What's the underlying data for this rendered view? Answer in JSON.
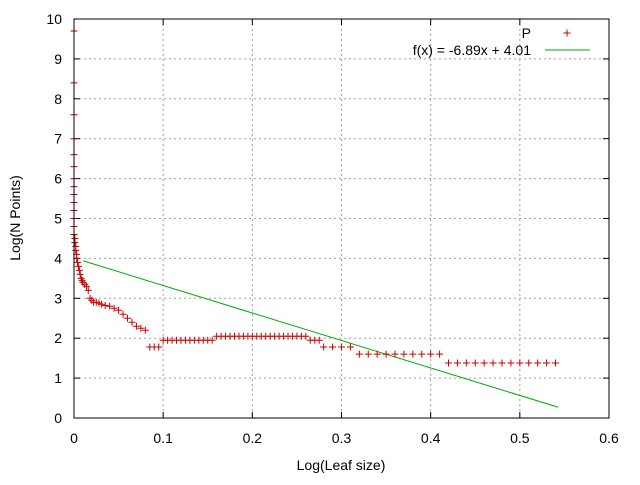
{
  "chart_data": {
    "type": "scatter",
    "xlabel": "Log(Leaf size)",
    "ylabel": "Log(N Points)",
    "xlim": [
      0,
      0.6
    ],
    "ylim": [
      0,
      10
    ],
    "x_ticks": [
      "0",
      "0.1",
      "0.2",
      "0.3",
      "0.4",
      "0.5",
      "0.6"
    ],
    "y_ticks": [
      "0",
      "1",
      "2",
      "3",
      "4",
      "5",
      "6",
      "7",
      "8",
      "9",
      "10"
    ],
    "grid": true,
    "legend_position": "top-right",
    "series": [
      {
        "name": "P",
        "kind": "points",
        "marker": "+",
        "color": "#cc0000",
        "x": [
          0,
          0,
          0,
          0,
          0,
          0,
          0,
          0,
          0,
          0,
          0,
          0,
          0,
          0,
          0.001,
          0.001,
          0.002,
          0.002,
          0.003,
          0.003,
          0.004,
          0.005,
          0.006,
          0.007,
          0.008,
          0.009,
          0.01,
          0.012,
          0.014,
          0.016,
          0.018,
          0.02,
          0.022,
          0.025,
          0.028,
          0.031,
          0.035,
          0.04,
          0.045,
          0.05,
          0.055,
          0.06,
          0.065,
          0.07,
          0.075,
          0.08,
          0.085,
          0.09,
          0.095,
          0.1,
          0.105,
          0.11,
          0.115,
          0.12,
          0.125,
          0.13,
          0.135,
          0.14,
          0.145,
          0.15,
          0.155,
          0.16,
          0.165,
          0.17,
          0.175,
          0.18,
          0.185,
          0.19,
          0.195,
          0.2,
          0.205,
          0.21,
          0.215,
          0.22,
          0.225,
          0.23,
          0.235,
          0.24,
          0.245,
          0.25,
          0.255,
          0.26,
          0.265,
          0.27,
          0.275,
          0.28,
          0.29,
          0.3,
          0.31,
          0.32,
          0.33,
          0.34,
          0.35,
          0.36,
          0.37,
          0.38,
          0.39,
          0.4,
          0.41,
          0.42,
          0.43,
          0.44,
          0.45,
          0.46,
          0.47,
          0.48,
          0.49,
          0.5,
          0.51,
          0.52,
          0.53,
          0.54
        ],
        "y": [
          9.7,
          8.4,
          7.6,
          7.0,
          6.6,
          6.3,
          6.0,
          5.8,
          5.6,
          5.4,
          5.2,
          5.0,
          4.8,
          4.6,
          4.5,
          4.4,
          4.3,
          4.2,
          4.1,
          4.0,
          3.9,
          3.8,
          3.7,
          3.6,
          3.5,
          3.45,
          3.4,
          3.35,
          3.3,
          3.2,
          3.0,
          2.95,
          2.9,
          2.9,
          2.88,
          2.85,
          2.82,
          2.8,
          2.75,
          2.7,
          2.6,
          2.5,
          2.4,
          2.3,
          2.25,
          2.2,
          1.78,
          1.78,
          1.78,
          1.95,
          1.95,
          1.95,
          1.95,
          1.95,
          1.95,
          1.95,
          1.95,
          1.95,
          1.95,
          1.95,
          1.95,
          2.05,
          2.05,
          2.05,
          2.05,
          2.05,
          2.05,
          2.05,
          2.05,
          2.05,
          2.05,
          2.05,
          2.05,
          2.05,
          2.05,
          2.05,
          2.05,
          2.05,
          2.05,
          2.05,
          2.05,
          2.05,
          1.95,
          1.95,
          1.95,
          1.78,
          1.78,
          1.78,
          1.78,
          1.6,
          1.6,
          1.6,
          1.6,
          1.6,
          1.6,
          1.6,
          1.6,
          1.6,
          1.6,
          1.38,
          1.38,
          1.38,
          1.38,
          1.38,
          1.38,
          1.38,
          1.38,
          1.38,
          1.38,
          1.38,
          1.38,
          1.38
        ]
      },
      {
        "name": "f(x) = -6.89x + 4.01",
        "kind": "line",
        "color": "#00aa00",
        "slope": -6.89,
        "intercept": 4.01,
        "x_range": [
          0.01,
          0.543
        ]
      }
    ]
  }
}
